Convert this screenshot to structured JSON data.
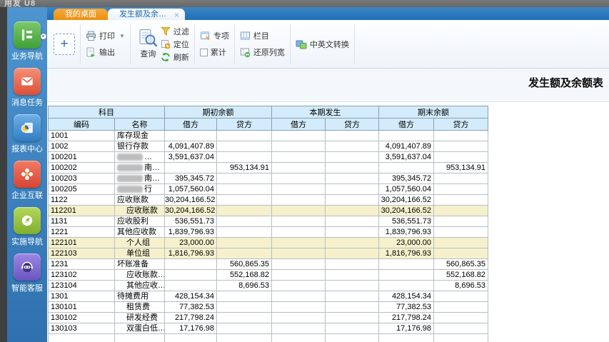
{
  "app": {
    "logo_text": "用友 U8"
  },
  "sidebar": {
    "items": [
      {
        "label": "业务导航",
        "icon": "business-nav-icon"
      },
      {
        "label": "消息任务",
        "icon": "message-task-icon"
      },
      {
        "label": "报表中心",
        "icon": "report-center-icon"
      },
      {
        "label": "企业互联",
        "icon": "enterprise-link-icon"
      },
      {
        "label": "实施导航",
        "icon": "implementation-nav-icon"
      },
      {
        "label": "智能客服",
        "icon": "smart-service-icon"
      }
    ]
  },
  "tabs": [
    {
      "label": "我的桌面",
      "active": false
    },
    {
      "label": "发生额及余…",
      "active": true,
      "close": "×"
    }
  ],
  "toolbar": {
    "add": "+",
    "print": "打印",
    "export": "输出",
    "query": "查询",
    "filter": "过滤",
    "locate": "定位",
    "refresh": "刷新",
    "special": "专项",
    "accumulate": "累计",
    "columns": "栏目",
    "restore_width": "还原列宽",
    "translate": "中英文转换"
  },
  "report": {
    "title": "发生额及余额表"
  },
  "table": {
    "group_headers": [
      "科目",
      "期初余额",
      "本期发生",
      "期末余额"
    ],
    "sub_headers": [
      "编码",
      "名称",
      "借方",
      "贷方",
      "借方",
      "贷方",
      "借方",
      "贷方"
    ],
    "rows": [
      {
        "code": "1001",
        "name": "库存现金",
        "cells": [
          "",
          "",
          "",
          "",
          "",
          ""
        ]
      },
      {
        "code": "1002",
        "name": "银行存款",
        "cells": [
          "4,091,407.89",
          "",
          "",
          "",
          "4,091,407.89",
          ""
        ]
      },
      {
        "code": "100201",
        "name": "…",
        "redacted": true,
        "cells": [
          "3,591,637.04",
          "",
          "",
          "",
          "3,591,637.04",
          ""
        ]
      },
      {
        "code": "100202",
        "name": "南…",
        "redacted": true,
        "cells": [
          "",
          "953,134.91",
          "",
          "",
          "",
          "953,134.91"
        ]
      },
      {
        "code": "100203",
        "name": "南…",
        "redacted": true,
        "cells": [
          "395,345.72",
          "",
          "",
          "",
          "395,345.72",
          ""
        ]
      },
      {
        "code": "100205",
        "name": "行",
        "redacted": true,
        "cells": [
          "1,057,560.04",
          "",
          "",
          "",
          "1,057,560.04",
          ""
        ]
      },
      {
        "code": "1122",
        "name": "应收账款",
        "cells": [
          "30,204,166.52",
          "",
          "",
          "",
          "30,204,166.52",
          ""
        ]
      },
      {
        "code": "112201",
        "name": "应收账款",
        "indent": true,
        "highlight": true,
        "cells": [
          "30,204,166.52",
          "",
          "",
          "",
          "30,204,166.52",
          ""
        ]
      },
      {
        "code": "1131",
        "name": "应收股利",
        "cells": [
          "536,551.73",
          "",
          "",
          "",
          "536,551.73",
          ""
        ]
      },
      {
        "code": "1221",
        "name": "其他应收款",
        "cells": [
          "1,839,796.93",
          "",
          "",
          "",
          "1,839,796.93",
          ""
        ]
      },
      {
        "code": "122101",
        "name": "个人组",
        "indent": true,
        "highlight": true,
        "cells": [
          "23,000.00",
          "",
          "",
          "",
          "23,000.00",
          ""
        ]
      },
      {
        "code": "122103",
        "name": "单位组",
        "indent": true,
        "highlight": true,
        "cells": [
          "1,816,796.93",
          "",
          "",
          "",
          "1,816,796.93",
          ""
        ]
      },
      {
        "code": "1231",
        "name": "坏账准备",
        "cells": [
          "",
          "560,865.35",
          "",
          "",
          "",
          "560,865.35"
        ]
      },
      {
        "code": "123102",
        "name": "应收账款…",
        "indent": true,
        "cells": [
          "",
          "552,168.82",
          "",
          "",
          "",
          "552,168.82"
        ]
      },
      {
        "code": "123104",
        "name": "其他应收…",
        "indent": true,
        "cells": [
          "",
          "8,696.53",
          "",
          "",
          "",
          "8,696.53"
        ]
      },
      {
        "code": "1301",
        "name": "待摊费用",
        "cells": [
          "428,154.34",
          "",
          "",
          "",
          "428,154.34",
          ""
        ]
      },
      {
        "code": "130101",
        "name": "租赁费",
        "indent": true,
        "cells": [
          "77,382.53",
          "",
          "",
          "",
          "77,382.53",
          ""
        ]
      },
      {
        "code": "130102",
        "name": "研发经费",
        "indent": true,
        "cells": [
          "217,798.24",
          "",
          "",
          "",
          "217,798.24",
          ""
        ]
      },
      {
        "code": "130103",
        "name": "双蛋白低…",
        "indent": true,
        "cells": [
          "17,176.98",
          "",
          "",
          "",
          "17,176.98",
          ""
        ]
      },
      {
        "code": "",
        "name": "",
        "partial": true,
        "cells": [
          "",
          "",
          "",
          "",
          "",
          ""
        ]
      }
    ]
  }
}
